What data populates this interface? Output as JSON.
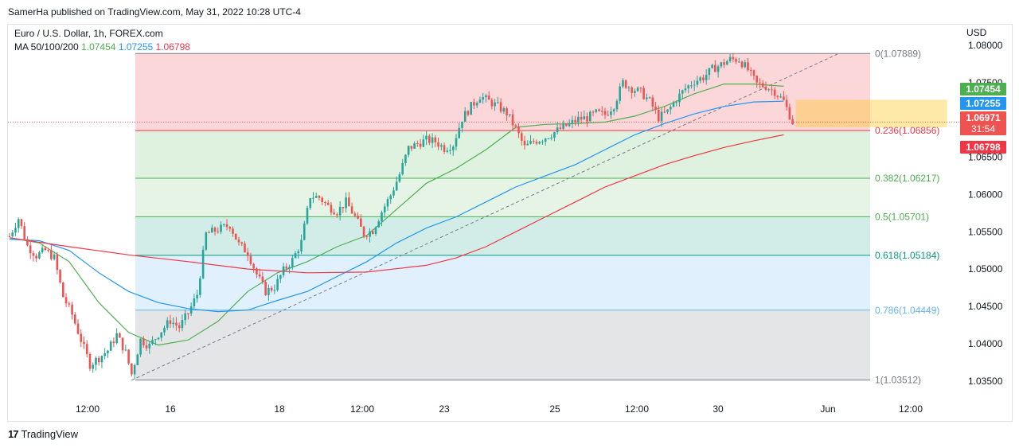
{
  "header": {
    "publisher": "SamerHa published on TradingView.com, May 31, 2022 10:28 UTC-4"
  },
  "legend": {
    "symbol": "Euro / U.S. Dollar, 1h, FOREX.com",
    "ma_label": "MA 50/100/200",
    "ma50": "1.07454",
    "ma100": "1.07255",
    "ma200": "1.06798"
  },
  "footer": {
    "brand": "TradingView"
  },
  "colors": {
    "ma50": "#4caf50",
    "ma100": "#2196f3",
    "ma200": "#f23645",
    "up": "#26a69a",
    "down": "#ef5350"
  },
  "chart_data": {
    "type": "line",
    "currency": "USD",
    "y_ticks": [
      "1.08000",
      "1.07500",
      "1.07000",
      "1.06500",
      "1.06000",
      "1.05500",
      "1.05000",
      "1.04500",
      "1.04000",
      "1.03500"
    ],
    "y_range": [
      1.0322,
      1.0818
    ],
    "x_ticks": [
      "12:00",
      "16",
      "18",
      "12:00",
      "23",
      "25",
      "12:00",
      "30",
      "Jun",
      "12:00"
    ],
    "price_badges": [
      {
        "label": "1.07454",
        "color": "#4caf50"
      },
      {
        "label": "1.07255",
        "color": "#2196f3"
      },
      {
        "label": "1.06971",
        "sub": "31:54",
        "color": "#ef5350"
      },
      {
        "label": "1.06798",
        "color": "#f23645"
      }
    ],
    "fibonacci": [
      {
        "label": "0(1.07889)",
        "ratio": 0,
        "price": 1.07889
      },
      {
        "label": "0.236(1.06856)",
        "ratio": 0.236,
        "price": 1.06856
      },
      {
        "label": "0.382(1.06217)",
        "ratio": 0.382,
        "price": 1.06217
      },
      {
        "label": "0.5(1.05701)",
        "ratio": 0.5,
        "price": 1.05701
      },
      {
        "label": "0.618(1.05184)",
        "ratio": 0.618,
        "price": 1.05184
      },
      {
        "label": "0.786(1.04449)",
        "ratio": 0.786,
        "price": 1.04449
      },
      {
        "label": "1(1.03512)",
        "ratio": 1,
        "price": 1.03512
      }
    ],
    "last_price": 1.06971,
    "price_path": [
      [
        0,
        1.0544
      ],
      [
        3,
        1.0568
      ],
      [
        6,
        1.0531
      ],
      [
        9,
        1.0518
      ],
      [
        12,
        1.0525
      ],
      [
        15,
        1.0515
      ],
      [
        18,
        1.0463
      ],
      [
        21,
        1.0439
      ],
      [
        24,
        1.0405
      ],
      [
        27,
        1.0372
      ],
      [
        30,
        1.0381
      ],
      [
        33,
        1.0391
      ],
      [
        36,
        1.0412
      ],
      [
        39,
        1.0388
      ],
      [
        41,
        1.0359
      ],
      [
        44,
        1.0405
      ],
      [
        47,
        1.0397
      ],
      [
        50,
        1.0413
      ],
      [
        54,
        1.0431
      ],
      [
        57,
        1.0422
      ],
      [
        60,
        1.0441
      ],
      [
        63,
        1.0466
      ],
      [
        66,
        1.0547
      ],
      [
        70,
        1.0553
      ],
      [
        74,
        1.0559
      ],
      [
        77,
        1.0533
      ],
      [
        80,
        1.0522
      ],
      [
        83,
        1.0493
      ],
      [
        86,
        1.047
      ],
      [
        89,
        1.0476
      ],
      [
        92,
        1.0498
      ],
      [
        95,
        1.0512
      ],
      [
        98,
        1.0536
      ],
      [
        101,
        1.0598
      ],
      [
        104,
        1.0596
      ],
      [
        107,
        1.0584
      ],
      [
        110,
        1.0577
      ],
      [
        113,
        1.059
      ],
      [
        116,
        1.057
      ],
      [
        119,
        1.0547
      ],
      [
        122,
        1.0552
      ],
      [
        125,
        1.0577
      ],
      [
        128,
        1.0599
      ],
      [
        131,
        1.0627
      ],
      [
        134,
        1.0662
      ],
      [
        137,
        1.0668
      ],
      [
        140,
        1.0673
      ],
      [
        143,
        1.0671
      ],
      [
        146,
        1.0662
      ],
      [
        149,
        1.0667
      ],
      [
        152,
        1.0702
      ],
      [
        155,
        1.0718
      ],
      [
        158,
        1.0732
      ],
      [
        161,
        1.0725
      ],
      [
        164,
        1.0718
      ],
      [
        167,
        1.0709
      ],
      [
        170,
        1.0688
      ],
      [
        173,
        1.0663
      ],
      [
        176,
        1.0671
      ],
      [
        179,
        1.0675
      ],
      [
        182,
        1.0681
      ],
      [
        185,
        1.0688
      ],
      [
        188,
        1.0694
      ],
      [
        191,
        1.0701
      ],
      [
        194,
        1.0703
      ],
      [
        197,
        1.0709
      ],
      [
        200,
        1.0707
      ],
      [
        203,
        1.072
      ],
      [
        206,
        1.075
      ],
      [
        209,
        1.0742
      ],
      [
        212,
        1.0737
      ],
      [
        215,
        1.0725
      ],
      [
        218,
        1.0703
      ],
      [
        221,
        1.0711
      ],
      [
        224,
        1.0728
      ],
      [
        227,
        1.0742
      ],
      [
        230,
        1.0752
      ],
      [
        233,
        1.0757
      ],
      [
        236,
        1.0768
      ],
      [
        239,
        1.0774
      ],
      [
        242,
        1.0781
      ],
      [
        245,
        1.0781
      ],
      [
        248,
        1.0767
      ],
      [
        251,
        1.0748
      ],
      [
        254,
        1.0745
      ],
      [
        257,
        1.0738
      ],
      [
        260,
        1.0725
      ],
      [
        263,
        1.0697
      ]
    ],
    "ma50_path": [
      [
        0,
        1.0542
      ],
      [
        10,
        1.0535
      ],
      [
        20,
        1.051
      ],
      [
        30,
        1.0455
      ],
      [
        40,
        1.0415
      ],
      [
        50,
        1.0398
      ],
      [
        60,
        1.0405
      ],
      [
        70,
        1.043
      ],
      [
        80,
        1.047
      ],
      [
        90,
        1.0495
      ],
      [
        100,
        1.051
      ],
      [
        110,
        1.053
      ],
      [
        120,
        1.0545
      ],
      [
        130,
        1.058
      ],
      [
        140,
        1.0615
      ],
      [
        150,
        1.0635
      ],
      [
        160,
        1.066
      ],
      [
        170,
        1.069
      ],
      [
        180,
        1.0694
      ],
      [
        190,
        1.0695
      ],
      [
        200,
        1.0697
      ],
      [
        210,
        1.0705
      ],
      [
        220,
        1.0718
      ],
      [
        230,
        1.0735
      ],
      [
        240,
        1.0748
      ],
      [
        250,
        1.0748
      ],
      [
        260,
        1.0745
      ]
    ],
    "ma100_path": [
      [
        0,
        1.054
      ],
      [
        10,
        1.0538
      ],
      [
        20,
        1.0525
      ],
      [
        30,
        1.0495
      ],
      [
        40,
        1.047
      ],
      [
        50,
        1.0455
      ],
      [
        60,
        1.0447
      ],
      [
        70,
        1.0443
      ],
      [
        80,
        1.0445
      ],
      [
        90,
        1.0458
      ],
      [
        100,
        1.047
      ],
      [
        110,
        1.049
      ],
      [
        120,
        1.051
      ],
      [
        130,
        1.0535
      ],
      [
        140,
        1.0555
      ],
      [
        150,
        1.057
      ],
      [
        160,
        1.059
      ],
      [
        170,
        1.061
      ],
      [
        180,
        1.0625
      ],
      [
        190,
        1.064
      ],
      [
        200,
        1.066
      ],
      [
        210,
        1.068
      ],
      [
        220,
        1.0695
      ],
      [
        230,
        1.0708
      ],
      [
        240,
        1.0718
      ],
      [
        250,
        1.0724
      ],
      [
        260,
        1.0725
      ]
    ],
    "ma200_path": [
      [
        0,
        1.0542
      ],
      [
        20,
        1.053
      ],
      [
        40,
        1.0519
      ],
      [
        60,
        1.051
      ],
      [
        80,
        1.05
      ],
      [
        100,
        1.0495
      ],
      [
        120,
        1.0496
      ],
      [
        140,
        1.0505
      ],
      [
        150,
        1.0515
      ],
      [
        160,
        1.053
      ],
      [
        170,
        1.055
      ],
      [
        180,
        1.057
      ],
      [
        190,
        1.059
      ],
      [
        200,
        1.061
      ],
      [
        210,
        1.0625
      ],
      [
        220,
        1.064
      ],
      [
        230,
        1.0652
      ],
      [
        240,
        1.0663
      ],
      [
        250,
        1.0672
      ],
      [
        260,
        1.068
      ]
    ],
    "trendline": [
      [
        41,
        1.0351
      ],
      [
        278,
        1.0788
      ]
    ],
    "last_bar_index": 263,
    "total_bars": 300
  }
}
